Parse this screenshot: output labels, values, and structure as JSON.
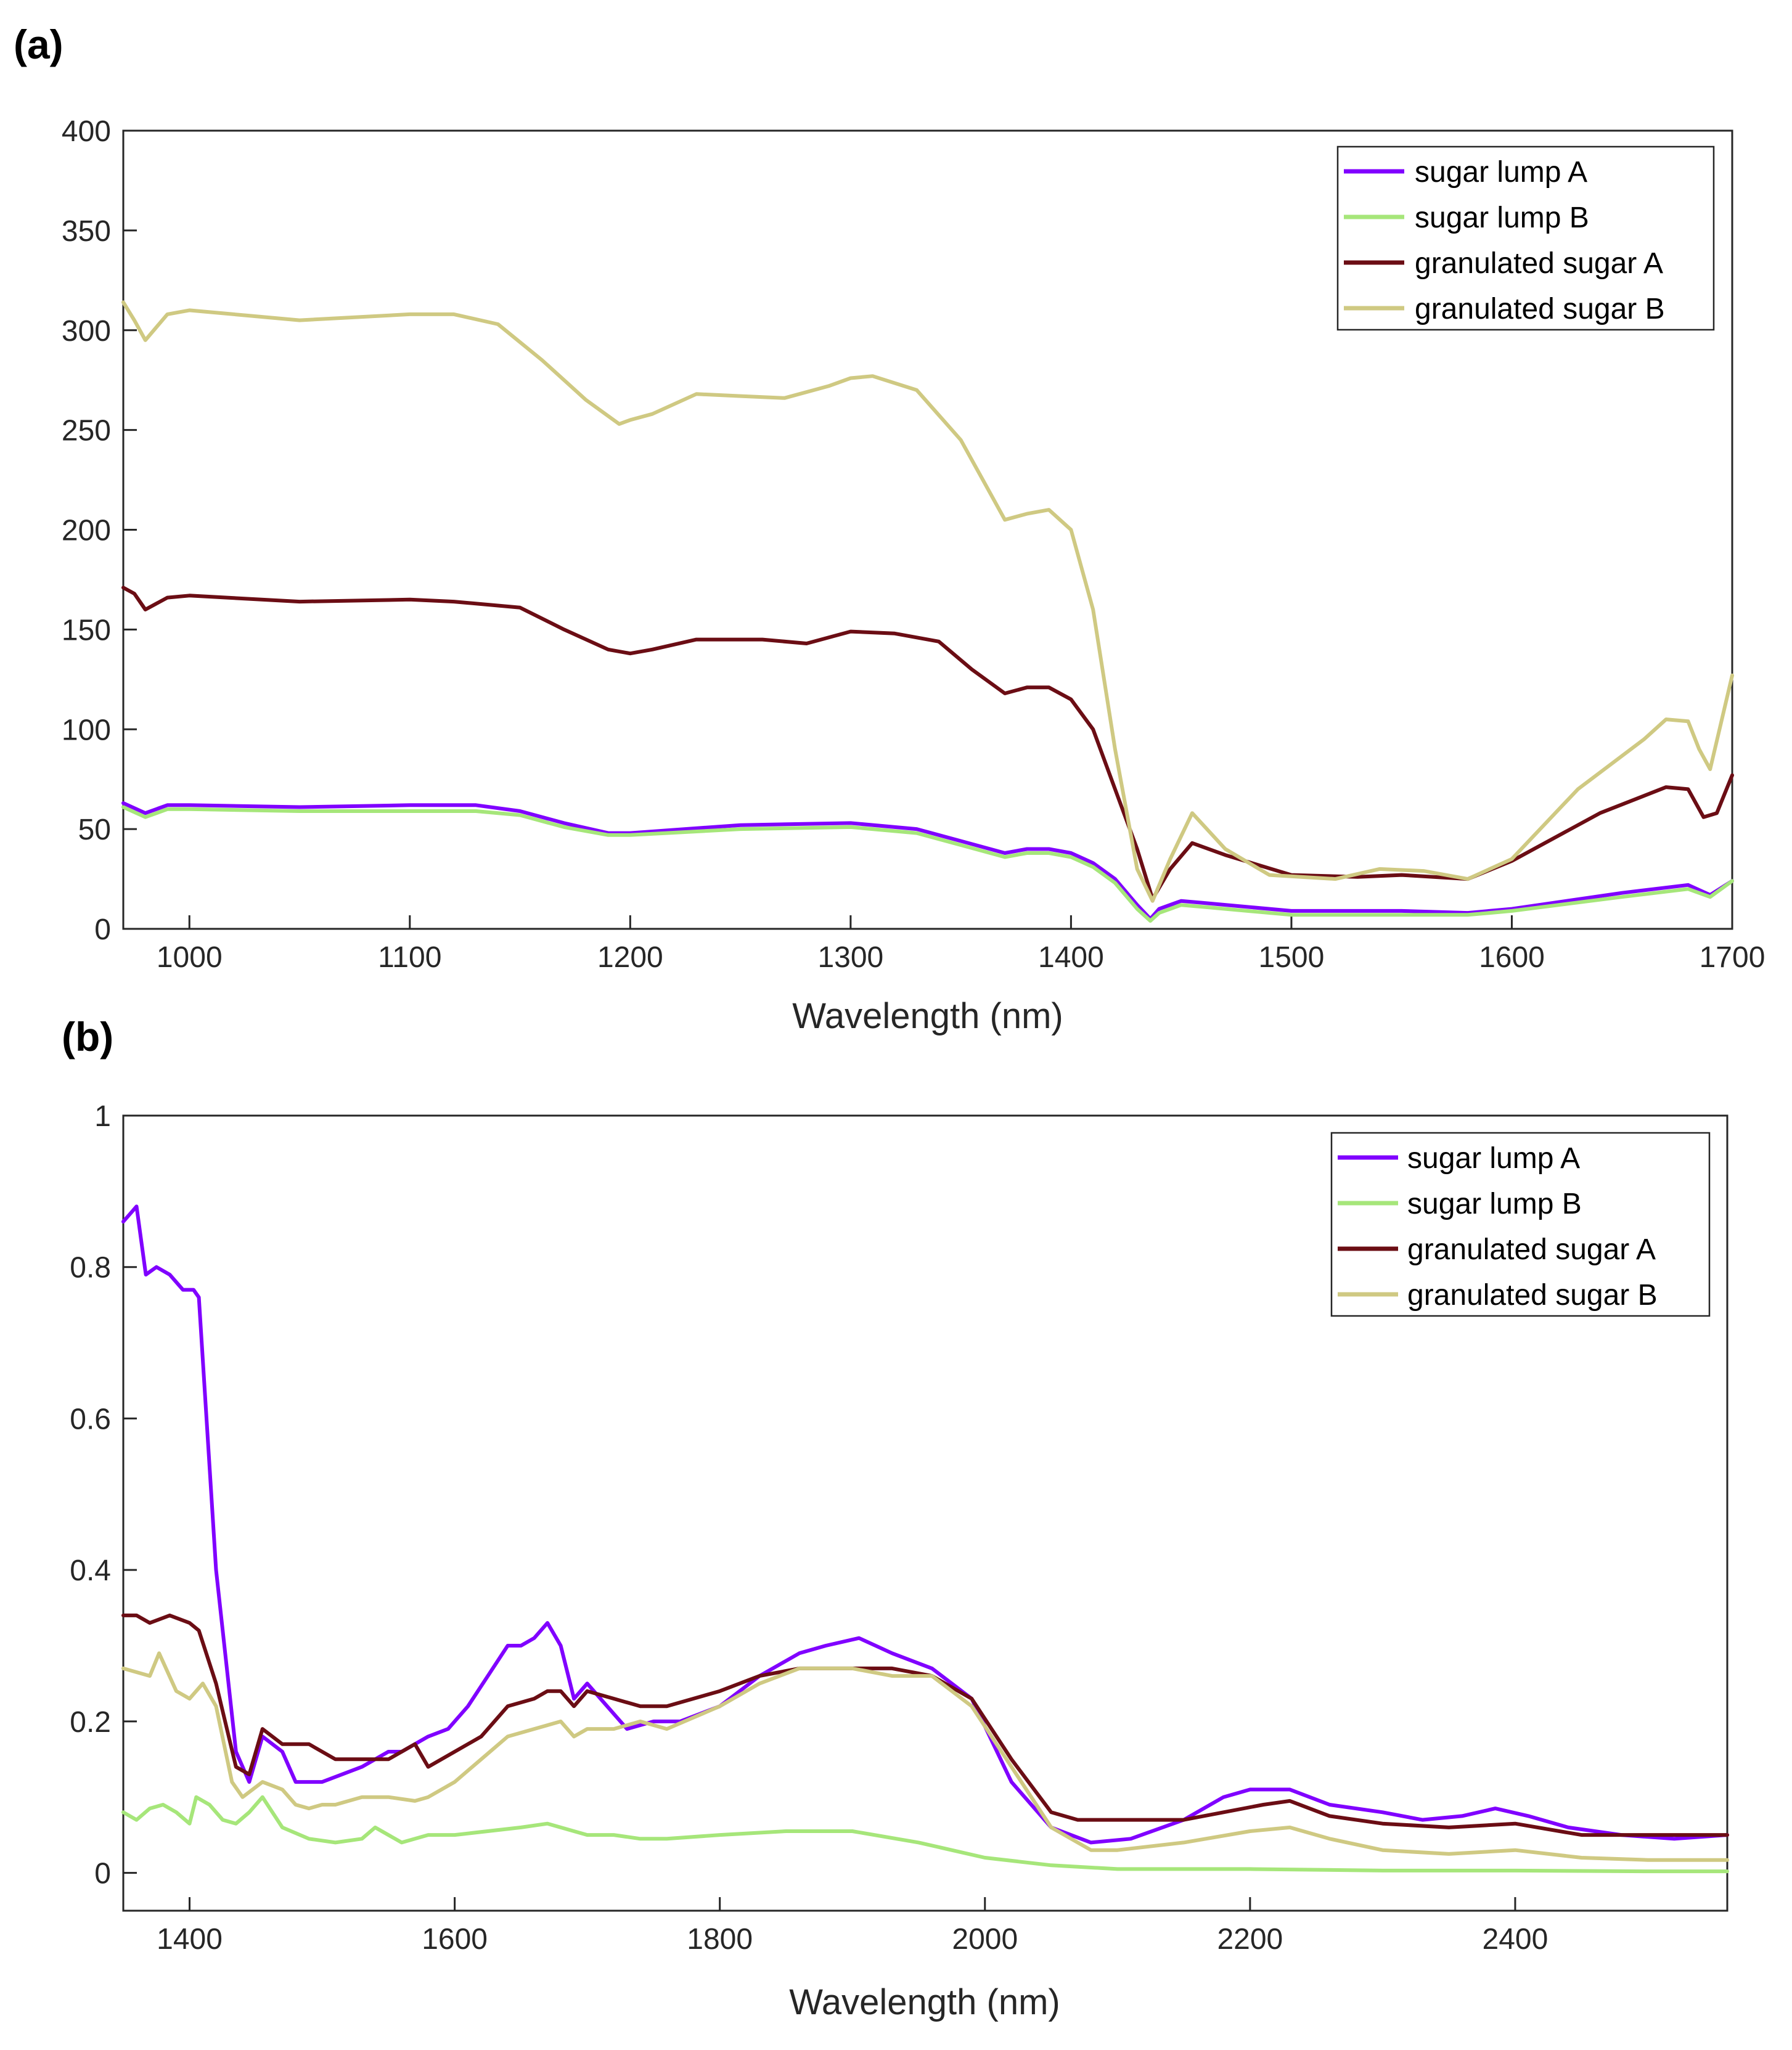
{
  "colors": {
    "sugar_lump_a": "#8000ff",
    "sugar_lump_b": "#a6e67a",
    "granulated_sugar_a": "#6b0d14",
    "granulated_sugar_b": "#cfc982",
    "axis": "#262626"
  },
  "chart_data": [
    {
      "type": "line",
      "panel_label": "(a)",
      "xlabel": "Wavelength (nm)",
      "ylabel": "",
      "xlim": [
        970,
        1700
      ],
      "ylim": [
        0,
        400
      ],
      "xticks": [
        1000,
        1100,
        1200,
        1300,
        1400,
        1500,
        1600,
        1700
      ],
      "xtick_labels": [
        "1000",
        "1100",
        "1200",
        "1300",
        "1400",
        "1500",
        "1600",
        "1700"
      ],
      "yticks": [
        0,
        50,
        100,
        150,
        200,
        250,
        300,
        350,
        400
      ],
      "ytick_labels": [
        "0",
        "50",
        "100",
        "150",
        "200",
        "250",
        "300",
        "350",
        "400"
      ],
      "grid": false,
      "legend_position": "top-right",
      "series": [
        {
          "name": "sugar lump A",
          "color_key": "sugar_lump_a",
          "x": [
            970,
            980,
            990,
            1000,
            1050,
            1100,
            1130,
            1150,
            1170,
            1190,
            1200,
            1250,
            1300,
            1330,
            1350,
            1370,
            1380,
            1390,
            1400,
            1410,
            1420,
            1430,
            1436,
            1440,
            1450,
            1460,
            1500,
            1550,
            1580,
            1600,
            1650,
            1680,
            1690,
            1700
          ],
          "y": [
            63,
            58,
            62,
            62,
            61,
            62,
            62,
            59,
            53,
            48,
            48,
            52,
            53,
            50,
            44,
            38,
            40,
            40,
            38,
            33,
            25,
            12,
            5,
            10,
            14,
            13,
            9,
            9,
            8,
            10,
            18,
            22,
            17,
            24
          ]
        },
        {
          "name": "sugar lump B",
          "color_key": "sugar_lump_b",
          "x": [
            970,
            980,
            990,
            1000,
            1050,
            1100,
            1130,
            1150,
            1170,
            1190,
            1200,
            1250,
            1300,
            1330,
            1350,
            1370,
            1380,
            1390,
            1400,
            1410,
            1420,
            1430,
            1436,
            1440,
            1450,
            1460,
            1500,
            1550,
            1580,
            1600,
            1650,
            1680,
            1690,
            1700
          ],
          "y": [
            61,
            56,
            60,
            60,
            59,
            59,
            59,
            57,
            51,
            47,
            47,
            50,
            51,
            48,
            42,
            36,
            38,
            38,
            36,
            31,
            23,
            10,
            4,
            8,
            12,
            11,
            7,
            7,
            7,
            9,
            16,
            20,
            16,
            24
          ]
        },
        {
          "name": "granulated sugar A",
          "color_key": "granulated_sugar_a",
          "x": [
            970,
            975,
            980,
            990,
            1000,
            1050,
            1100,
            1120,
            1150,
            1170,
            1190,
            1200,
            1210,
            1230,
            1260,
            1280,
            1300,
            1320,
            1340,
            1355,
            1370,
            1380,
            1390,
            1400,
            1410,
            1420,
            1430,
            1437,
            1445,
            1455,
            1470,
            1500,
            1530,
            1550,
            1580,
            1600,
            1640,
            1670,
            1680,
            1687,
            1693,
            1700
          ],
          "y": [
            171,
            168,
            160,
            166,
            167,
            164,
            165,
            164,
            161,
            150,
            140,
            138,
            140,
            145,
            145,
            143,
            149,
            148,
            144,
            130,
            118,
            121,
            121,
            115,
            100,
            70,
            40,
            15,
            30,
            43,
            37,
            27,
            26,
            27,
            25,
            34,
            58,
            71,
            70,
            56,
            58,
            77
          ]
        },
        {
          "name": "granulated sugar B",
          "color_key": "granulated_sugar_b",
          "x": [
            970,
            975,
            980,
            990,
            1000,
            1050,
            1100,
            1120,
            1140,
            1160,
            1180,
            1195,
            1200,
            1210,
            1230,
            1250,
            1270,
            1290,
            1300,
            1310,
            1330,
            1350,
            1360,
            1370,
            1380,
            1390,
            1400,
            1410,
            1420,
            1430,
            1437,
            1445,
            1455,
            1470,
            1490,
            1520,
            1540,
            1560,
            1580,
            1600,
            1630,
            1660,
            1670,
            1680,
            1685,
            1690,
            1700
          ],
          "y": [
            314,
            305,
            295,
            308,
            310,
            305,
            308,
            308,
            303,
            285,
            265,
            253,
            255,
            258,
            268,
            267,
            266,
            272,
            276,
            277,
            270,
            245,
            225,
            205,
            208,
            210,
            200,
            160,
            90,
            30,
            14,
            35,
            58,
            40,
            27,
            25,
            30,
            29,
            25,
            35,
            70,
            95,
            105,
            104,
            90,
            80,
            127
          ]
        }
      ]
    },
    {
      "type": "line",
      "panel_label": "(b)",
      "xlabel": "Wavelength (nm)",
      "ylabel": "",
      "xlim": [
        1350,
        2560
      ],
      "ylim": [
        -0.05,
        1
      ],
      "xticks": [
        1400,
        1600,
        1800,
        2000,
        2200,
        2400
      ],
      "xtick_labels": [
        "1400",
        "1600",
        "1800",
        "2000",
        "2200",
        "2400"
      ],
      "yticks": [
        0,
        0.2,
        0.4,
        0.6,
        0.8,
        1
      ],
      "ytick_labels": [
        "0",
        "0.2",
        "0.4",
        "0.6",
        "0.8",
        "1"
      ],
      "grid": false,
      "legend_position": "top-right",
      "series": [
        {
          "name": "sugar lump A",
          "color_key": "sugar_lump_a",
          "x": [
            1350,
            1355,
            1360,
            1367,
            1375,
            1385,
            1395,
            1403,
            1407,
            1420,
            1435,
            1445,
            1455,
            1470,
            1480,
            1500,
            1530,
            1550,
            1560,
            1580,
            1595,
            1610,
            1625,
            1640,
            1650,
            1660,
            1670,
            1680,
            1690,
            1700,
            1710,
            1730,
            1750,
            1770,
            1800,
            1830,
            1860,
            1880,
            1905,
            1930,
            1960,
            1990,
            2020,
            2050,
            2080,
            2110,
            2150,
            2180,
            2200,
            2230,
            2260,
            2300,
            2330,
            2360,
            2385,
            2410,
            2440,
            2480,
            2520,
            2560
          ],
          "y": [
            0.86,
            0.87,
            0.88,
            0.79,
            0.8,
            0.79,
            0.77,
            0.77,
            0.76,
            0.4,
            0.16,
            0.12,
            0.18,
            0.16,
            0.12,
            0.12,
            0.14,
            0.16,
            0.16,
            0.18,
            0.19,
            0.22,
            0.26,
            0.3,
            0.3,
            0.31,
            0.33,
            0.3,
            0.23,
            0.25,
            0.23,
            0.19,
            0.2,
            0.2,
            0.22,
            0.26,
            0.29,
            0.3,
            0.31,
            0.29,
            0.27,
            0.23,
            0.12,
            0.06,
            0.04,
            0.045,
            0.07,
            0.1,
            0.11,
            0.11,
            0.09,
            0.08,
            0.07,
            0.075,
            0.085,
            0.075,
            0.06,
            0.05,
            0.045,
            0.05
          ]
        },
        {
          "name": "sugar lump B",
          "color_key": "sugar_lump_b",
          "x": [
            1350,
            1360,
            1370,
            1380,
            1390,
            1400,
            1405,
            1415,
            1425,
            1435,
            1445,
            1455,
            1470,
            1490,
            1510,
            1530,
            1540,
            1560,
            1580,
            1600,
            1650,
            1670,
            1690,
            1700,
            1720,
            1740,
            1760,
            1800,
            1850,
            1900,
            1950,
            2000,
            2050,
            2100,
            2200,
            2300,
            2400,
            2500,
            2560
          ],
          "y": [
            0.08,
            0.07,
            0.085,
            0.09,
            0.08,
            0.065,
            0.1,
            0.09,
            0.07,
            0.065,
            0.08,
            0.1,
            0.06,
            0.045,
            0.04,
            0.045,
            0.06,
            0.04,
            0.05,
            0.05,
            0.06,
            0.065,
            0.055,
            0.05,
            0.05,
            0.045,
            0.045,
            0.05,
            0.055,
            0.055,
            0.04,
            0.02,
            0.01,
            0.005,
            0.005,
            0.003,
            0.003,
            0.002,
            0.002
          ]
        },
        {
          "name": "granulated sugar A",
          "color_key": "granulated_sugar_a",
          "x": [
            1350,
            1360,
            1370,
            1385,
            1400,
            1407,
            1420,
            1435,
            1445,
            1455,
            1470,
            1490,
            1510,
            1530,
            1550,
            1560,
            1570,
            1580,
            1600,
            1620,
            1630,
            1640,
            1660,
            1670,
            1680,
            1690,
            1700,
            1720,
            1740,
            1760,
            1800,
            1830,
            1860,
            1880,
            1900,
            1930,
            1960,
            1990,
            2020,
            2050,
            2070,
            2100,
            2150,
            2180,
            2210,
            2230,
            2260,
            2300,
            2350,
            2400,
            2450,
            2500,
            2560
          ],
          "y": [
            0.34,
            0.34,
            0.33,
            0.34,
            0.33,
            0.32,
            0.25,
            0.14,
            0.13,
            0.19,
            0.17,
            0.17,
            0.15,
            0.15,
            0.15,
            0.16,
            0.17,
            0.14,
            0.16,
            0.18,
            0.2,
            0.22,
            0.23,
            0.24,
            0.24,
            0.22,
            0.24,
            0.23,
            0.22,
            0.22,
            0.24,
            0.26,
            0.27,
            0.27,
            0.27,
            0.27,
            0.26,
            0.23,
            0.15,
            0.08,
            0.07,
            0.07,
            0.07,
            0.08,
            0.09,
            0.095,
            0.075,
            0.065,
            0.06,
            0.065,
            0.05,
            0.05,
            0.05
          ]
        },
        {
          "name": "granulated sugar B",
          "color_key": "granulated_sugar_b",
          "x": [
            1350,
            1360,
            1370,
            1377,
            1390,
            1400,
            1410,
            1420,
            1432,
            1440,
            1455,
            1470,
            1480,
            1490,
            1500,
            1510,
            1530,
            1550,
            1570,
            1580,
            1600,
            1620,
            1640,
            1660,
            1680,
            1690,
            1700,
            1720,
            1740,
            1760,
            1800,
            1830,
            1860,
            1880,
            1900,
            1930,
            1960,
            1990,
            2020,
            2050,
            2080,
            2100,
            2150,
            2200,
            2230,
            2260,
            2300,
            2350,
            2400,
            2450,
            2500,
            2560
          ],
          "y": [
            0.27,
            0.265,
            0.26,
            0.29,
            0.24,
            0.23,
            0.25,
            0.22,
            0.12,
            0.1,
            0.12,
            0.11,
            0.09,
            0.085,
            0.09,
            0.09,
            0.1,
            0.1,
            0.095,
            0.1,
            0.12,
            0.15,
            0.18,
            0.19,
            0.2,
            0.18,
            0.19,
            0.19,
            0.2,
            0.19,
            0.22,
            0.25,
            0.27,
            0.27,
            0.27,
            0.26,
            0.26,
            0.22,
            0.14,
            0.06,
            0.03,
            0.03,
            0.04,
            0.055,
            0.06,
            0.045,
            0.03,
            0.025,
            0.03,
            0.02,
            0.017,
            0.017
          ]
        }
      ]
    }
  ]
}
